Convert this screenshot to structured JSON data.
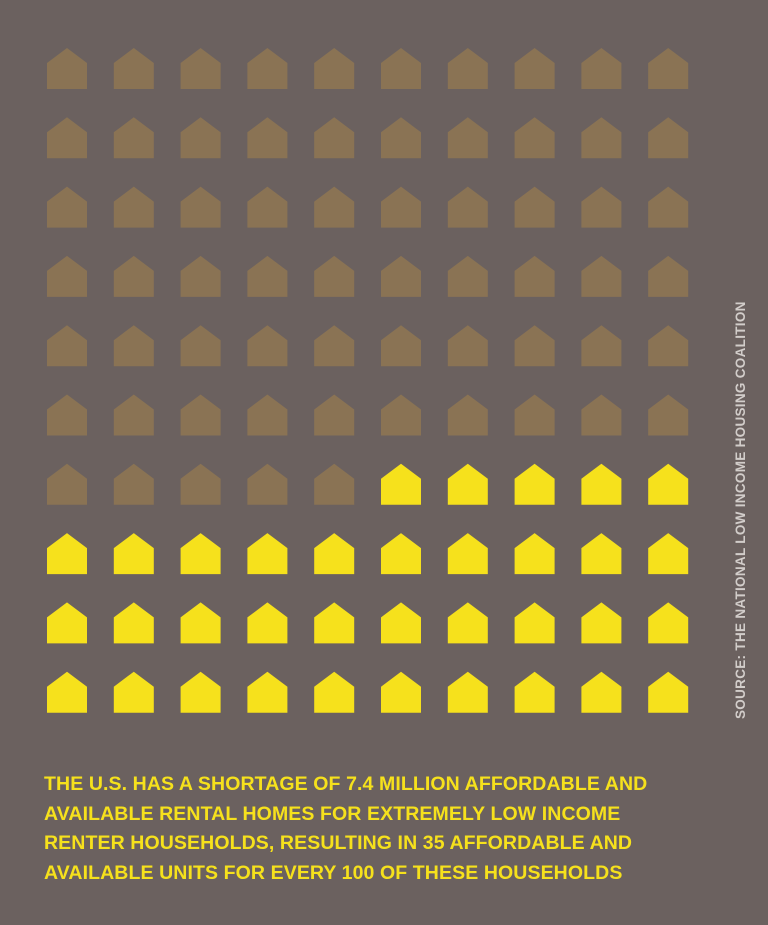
{
  "colors": {
    "background": "#6b615f",
    "unavailable_house": "#8a7354",
    "available_house": "#f6e11c",
    "caption_text": "#f6e11c",
    "source_text": "#d2cdca"
  },
  "caption_lines": [
    "THE U.S. HAS A SHORTAGE OF 7.4 MILLION AFFORDABLE AND",
    "AVAILABLE RENTAL HOMES FOR EXTREMELY LOW INCOME",
    "RENTER HOUSEHOLDS, RESULTING IN 35 AFFORDABLE AND",
    "AVAILABLE UNITS FOR EVERY 100 OF THESE HOUSEHOLDS"
  ],
  "source": "SOURCE: THE NATIONAL LOW INCOME HOUSING COALITION",
  "chart_data": {
    "type": "icon-array",
    "icon": "house-icon",
    "rows": 10,
    "columns": 10,
    "total": 100,
    "series": [
      {
        "value": 65,
        "color": "#8a7354"
      },
      {
        "value": 35,
        "color": "#f6e11c"
      }
    ]
  }
}
